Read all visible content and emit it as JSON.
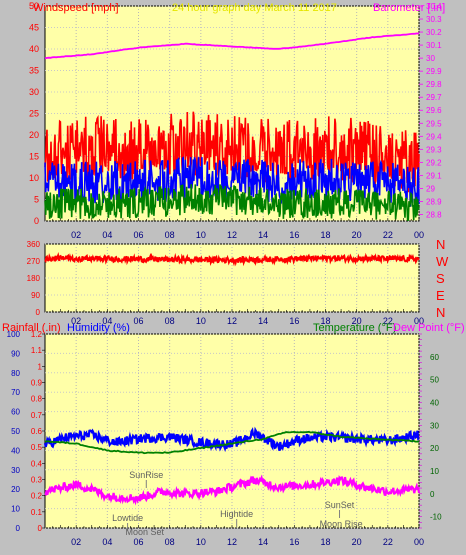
{
  "header": {
    "windspeed_label": "Windspeed [mph]",
    "title": "24 hour graph day   March 11 2017",
    "barometer_label": "Barometer [.in]"
  },
  "colors": {
    "background": "#c0c0c0",
    "plot": "#ffffa8",
    "wind_gust": "#ff0000",
    "wind_avg": "#0000ff",
    "wind_min": "#008000",
    "barometer": "#ff00ff",
    "humidity": "#0000ff",
    "temperature": "#008000",
    "dewpoint": "#ff00ff",
    "rainfall": "#ff0000",
    "axis_blue": "#0000c0",
    "axis_green": "#006400",
    "axis_magenta": "#e000e0"
  },
  "events": [
    {
      "label": "SunRise",
      "time": 6.5
    },
    {
      "label": "Lowtide",
      "time": 5.3
    },
    {
      "label": "Moon Set",
      "time": 6.4
    },
    {
      "label": "Hightide",
      "time": 12.3
    },
    {
      "label": "SunSet",
      "time": 18.9
    },
    {
      "label": "Moon Rise",
      "time": 19.0
    }
  ],
  "chart_data": [
    {
      "type": "line",
      "title": "24 hour graph day   March 11 2017",
      "x_ticks": [
        "02",
        "04",
        "06",
        "08",
        "10",
        "12",
        "14",
        "16",
        "18",
        "20",
        "22",
        "00"
      ],
      "x_range_hours": [
        0,
        24
      ],
      "y_left": {
        "label": "Windspeed [mph]",
        "range": [
          0,
          50
        ],
        "ticks": [
          "0",
          "5",
          "10",
          "15",
          "20",
          "25",
          "30",
          "35",
          "40",
          "45",
          "50"
        ]
      },
      "y_right": {
        "label": "Barometer [.in]",
        "range": [
          28.75,
          30.4
        ],
        "ticks": [
          "28.8",
          "28.9",
          "29",
          "29.1",
          "29.2",
          "29.3",
          "29.4",
          "29.5",
          "29.6",
          "29.7",
          "29.8",
          "29.9",
          "30",
          "30.1",
          "30.2",
          "30.3",
          "30.4"
        ]
      },
      "series": [
        {
          "role": "wind_gust",
          "axis": "left",
          "typical_range": [
            10,
            27
          ],
          "keypoints": [
            [
              0,
              15
            ],
            [
              3,
              17
            ],
            [
              6,
              16
            ],
            [
              9,
              18
            ],
            [
              12,
              17
            ],
            [
              15,
              16
            ],
            [
              18,
              17
            ],
            [
              21,
              16
            ],
            [
              24,
              13
            ]
          ]
        },
        {
          "role": "wind_avg",
          "axis": "left",
          "typical_range": [
            4,
            15
          ],
          "keypoints": [
            [
              0,
              9
            ],
            [
              3,
              9
            ],
            [
              6,
              9
            ],
            [
              9,
              10
            ],
            [
              12,
              10
            ],
            [
              15,
              9
            ],
            [
              18,
              10
            ],
            [
              21,
              9
            ],
            [
              24,
              8
            ]
          ]
        },
        {
          "role": "wind_min",
          "axis": "left",
          "typical_range": [
            0,
            8
          ],
          "keypoints": [
            [
              0,
              4
            ],
            [
              3,
              4
            ],
            [
              6,
              4
            ],
            [
              9,
              5
            ],
            [
              12,
              5
            ],
            [
              15,
              4
            ],
            [
              18,
              4
            ],
            [
              21,
              4
            ],
            [
              24,
              3
            ]
          ]
        },
        {
          "role": "barometer",
          "axis": "right",
          "keypoints": [
            [
              0,
              30.0
            ],
            [
              3,
              30.03
            ],
            [
              6,
              30.08
            ],
            [
              9,
              30.11
            ],
            [
              12,
              30.09
            ],
            [
              15,
              30.07
            ],
            [
              18,
              30.11
            ],
            [
              21,
              30.16
            ],
            [
              24,
              30.19
            ]
          ]
        }
      ],
      "grid": true
    },
    {
      "type": "line",
      "x_ticks": [
        "02",
        "04",
        "06",
        "08",
        "10",
        "12",
        "14",
        "16",
        "18",
        "20",
        "22",
        "00"
      ],
      "y_left": {
        "range": [
          0,
          360
        ],
        "ticks": [
          "0",
          "90",
          "180",
          "270",
          "360"
        ]
      },
      "compass_labels": [
        "N",
        "W",
        "S",
        "E",
        "N"
      ],
      "series": [
        {
          "role": "wind_direction",
          "typical_range": [
            255,
            305
          ],
          "keypoints": [
            [
              0,
              285
            ],
            [
              6,
              280
            ],
            [
              12,
              275
            ],
            [
              18,
              285
            ],
            [
              24,
              280
            ]
          ]
        }
      ],
      "grid": true
    },
    {
      "type": "line",
      "x_ticks": [
        "02",
        "04",
        "06",
        "08",
        "10",
        "12",
        "14",
        "16",
        "18",
        "20",
        "22",
        "00"
      ],
      "labels": {
        "rainfall": "Rainfall (.in)",
        "humidity": "Humidity (%)",
        "temperature": "Temperature (°F)",
        "dewpoint": "Dew Point (°F)"
      },
      "y_rain": {
        "range": [
          0,
          1.2
        ],
        "ticks": [
          "0",
          "0.1",
          "0.2",
          "0.3",
          "0.4",
          "0.5",
          "0.6",
          "0.7",
          "0.8",
          "0.9",
          "1",
          "1.1",
          "1.2"
        ]
      },
      "y_humidity": {
        "range": [
          0,
          100
        ],
        "ticks": [
          "0",
          "10",
          "20",
          "30",
          "40",
          "50",
          "60",
          "70",
          "80",
          "90",
          "100"
        ]
      },
      "y_temp": {
        "range": [
          -15,
          70
        ],
        "ticks": [
          "-10",
          "0",
          "10",
          "20",
          "30",
          "40",
          "50",
          "60"
        ]
      },
      "series": [
        {
          "role": "humidity",
          "axis": "humidity",
          "keypoints": [
            [
              0,
              43
            ],
            [
              1.5,
              47
            ],
            [
              3,
              48
            ],
            [
              4.5,
              44
            ],
            [
              6,
              46
            ],
            [
              8,
              47
            ],
            [
              10,
              44
            ],
            [
              12,
              43
            ],
            [
              13.5,
              49
            ],
            [
              15,
              42
            ],
            [
              16.5,
              46
            ],
            [
              18,
              47
            ],
            [
              20,
              46
            ],
            [
              22,
              45
            ],
            [
              24,
              48
            ]
          ]
        },
        {
          "role": "temperature",
          "axis": "temp",
          "keypoints": [
            [
              0,
              23
            ],
            [
              2,
              22
            ],
            [
              4,
              19
            ],
            [
              6,
              18
            ],
            [
              8,
              18
            ],
            [
              10,
              20
            ],
            [
              12,
              22
            ],
            [
              14,
              24
            ],
            [
              15.5,
              27
            ],
            [
              17,
              27
            ],
            [
              19,
              25
            ],
            [
              21,
              24
            ],
            [
              24,
              23
            ]
          ]
        },
        {
          "role": "dewpoint",
          "axis": "temp",
          "keypoints": [
            [
              0,
              1
            ],
            [
              2,
              4
            ],
            [
              3,
              2
            ],
            [
              4,
              -1
            ],
            [
              6,
              -2
            ],
            [
              7.5,
              1
            ],
            [
              9,
              0
            ],
            [
              11,
              1
            ],
            [
              13.5,
              6
            ],
            [
              15,
              3
            ],
            [
              17,
              4
            ],
            [
              19,
              6
            ],
            [
              20.5,
              3
            ],
            [
              22,
              1
            ],
            [
              24,
              2
            ]
          ]
        }
      ],
      "grid": true
    }
  ]
}
